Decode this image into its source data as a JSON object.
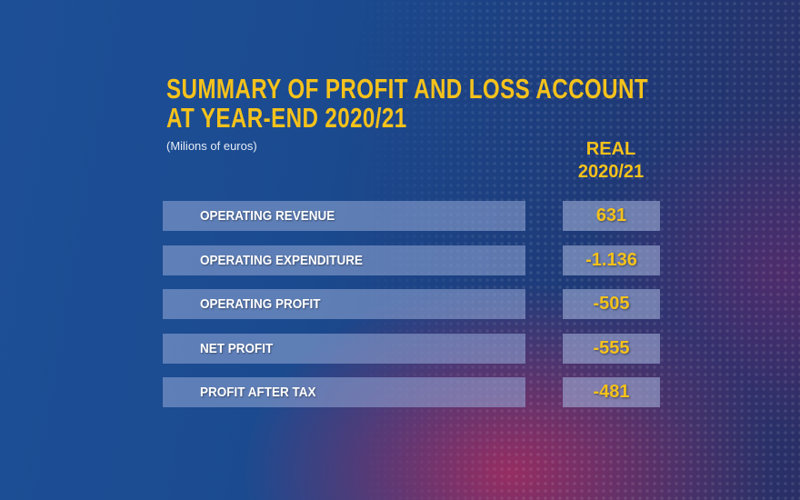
{
  "chart_data": {
    "type": "table",
    "title": "SUMMARY OF PROFIT AND LOSS ACCOUNT AT YEAR-END 2020/21",
    "title_lines": [
      "SUMMARY OF PROFIT AND LOSS ACCOUNT",
      "AT YEAR-END 2020/21"
    ],
    "subtitle": "(Milions of euros)",
    "column_header": [
      "REAL",
      "2020/21"
    ],
    "rows": [
      {
        "label": "OPERATING REVENUE",
        "value": "631"
      },
      {
        "label": "OPERATING EXPENDITURE",
        "value": "-1.136"
      },
      {
        "label": "OPERATING PROFIT",
        "value": "-505"
      },
      {
        "label": "NET PROFIT",
        "value": "-555"
      },
      {
        "label": "PROFIT AFTER TAX",
        "value": "-481"
      }
    ],
    "colors": {
      "accent": "#f5c21b",
      "background": "#1d4f97",
      "label_text": "#ffffff"
    }
  }
}
